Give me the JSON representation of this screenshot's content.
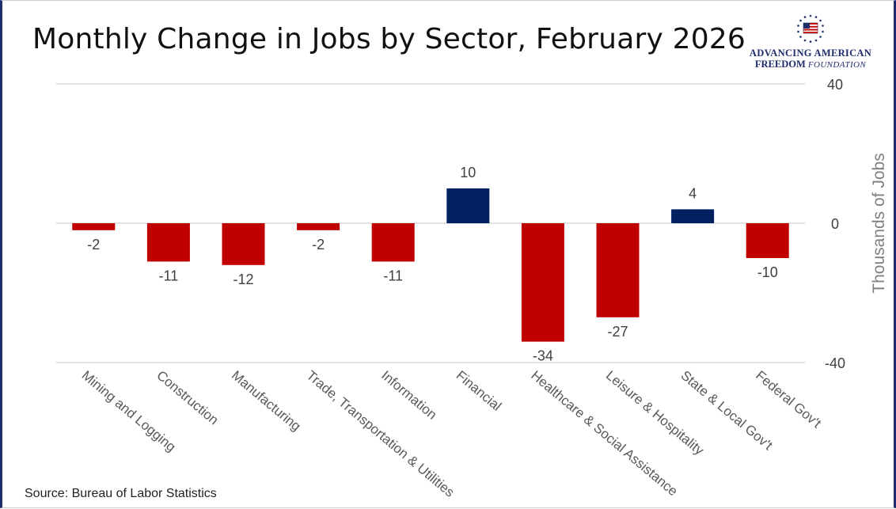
{
  "header": {
    "title": "Monthly Change in Jobs by Sector, February 2026"
  },
  "logo": {
    "line1": "ADVANCING AMERICAN",
    "line2_bold": "FREEDOM",
    "line2_italic": "FOUNDATION",
    "seal_icon": "american-flag-seal-icon"
  },
  "footer": {
    "source": "Source: Bureau of Labor Statistics"
  },
  "colors": {
    "negative": "#c00000",
    "positive": "#002060",
    "gridline": "#d9d9d9",
    "axis_text": "#595959",
    "label_text": "#404040"
  },
  "chart_data": {
    "type": "bar",
    "title": "Monthly Change in Jobs by Sector, February 2026",
    "xlabel": "",
    "ylabel": "Thousands of Jobs",
    "ylim": [
      -40,
      40
    ],
    "yticks": [
      40,
      0,
      -40
    ],
    "y_axis_position": "right",
    "grid": true,
    "legend": "none",
    "categories": [
      "Mining and Logging",
      "Construction",
      "Manufacturing",
      "Trade, Transportation & Utilities",
      "Information",
      "Financial",
      "Healthcare & Social Assistance",
      "Leisure & Hospitality",
      "State & Local Gov't",
      "Federal Gov't"
    ],
    "values": [
      -2,
      -11,
      -12,
      -2,
      -11,
      10,
      -34,
      -27,
      4,
      -10
    ]
  }
}
